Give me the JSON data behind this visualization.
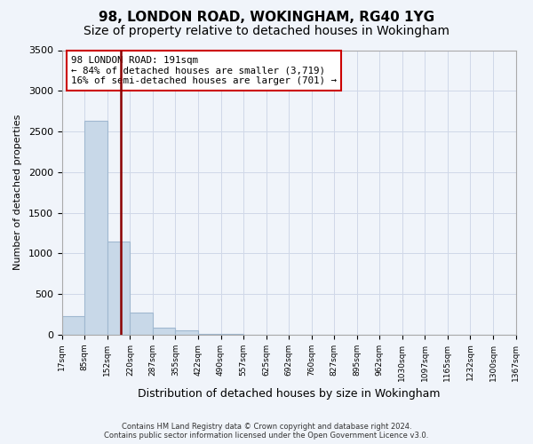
{
  "title": "98, LONDON ROAD, WOKINGHAM, RG40 1YG",
  "subtitle": "Size of property relative to detached houses in Wokingham",
  "xlabel": "Distribution of detached houses by size in Wokingham",
  "ylabel": "Number of detached properties",
  "footer_line1": "Contains HM Land Registry data © Crown copyright and database right 2024.",
  "footer_line2": "Contains public sector information licensed under the Open Government Licence v3.0.",
  "bin_labels": [
    "17sqm",
    "85sqm",
    "152sqm",
    "220sqm",
    "287sqm",
    "355sqm",
    "422sqm",
    "490sqm",
    "557sqm",
    "625sqm",
    "692sqm",
    "760sqm",
    "827sqm",
    "895sqm",
    "962sqm",
    "1030sqm",
    "1097sqm",
    "1165sqm",
    "1232sqm",
    "1300sqm",
    "1367sqm"
  ],
  "bar_heights": [
    230,
    2630,
    1140,
    270,
    90,
    50,
    10,
    5,
    3,
    2,
    1,
    1,
    0,
    0,
    0,
    0,
    0,
    0,
    0,
    0
  ],
  "bar_color": "#c8d8e8",
  "bar_edgecolor": "#a0b8d0",
  "grid_color": "#d0d8e8",
  "vline_color": "#8b0000",
  "annotation_text": "98 LONDON ROAD: 191sqm\n← 84% of detached houses are smaller (3,719)\n16% of semi-detached houses are larger (701) →",
  "annotation_box_color": "#cc0000",
  "ylim": [
    0,
    3500
  ],
  "yticks": [
    0,
    500,
    1000,
    1500,
    2000,
    2500,
    3000,
    3500
  ],
  "background_color": "#f0f4fa",
  "title_fontsize": 11,
  "subtitle_fontsize": 10,
  "bin_edges": [
    17,
    85,
    152,
    220,
    287,
    355,
    422,
    490,
    557,
    625,
    692,
    760,
    827,
    895,
    962,
    1030,
    1097,
    1165,
    1232,
    1300,
    1367
  ],
  "property_sqm": 191
}
